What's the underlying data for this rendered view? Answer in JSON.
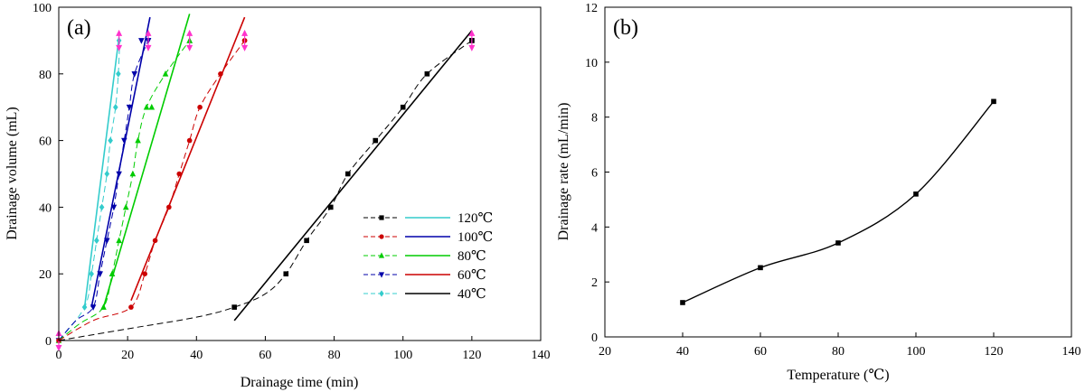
{
  "chart_data": [
    {
      "type": "line",
      "panel_label": "(a)",
      "xlabel": "Drainage time (min)",
      "ylabel": "Drainage volume (mL)",
      "xlim": [
        0,
        140
      ],
      "ylim": [
        0,
        100
      ],
      "xticks": [
        "0",
        "20",
        "40",
        "60",
        "80",
        "100",
        "120",
        "140"
      ],
      "yticks": [
        "0",
        "20",
        "40",
        "60",
        "80",
        "100"
      ],
      "legend_position": "lower-right",
      "series": [
        {
          "name": "120℃",
          "color": "#33cccc",
          "marker": "diamond",
          "x": [
            0,
            7.5,
            9.5,
            11,
            12.5,
            14,
            15,
            16.5,
            17.3
          ],
          "y": [
            0,
            10,
            20,
            30,
            40,
            50,
            60,
            70,
            80
          ],
          "dashed_curve": [
            [
              0,
              0
            ],
            [
              7.5,
              10
            ],
            [
              9.5,
              20
            ],
            [
              11,
              30
            ],
            [
              12.5,
              40
            ],
            [
              14,
              50
            ],
            [
              15,
              60
            ],
            [
              16.5,
              70
            ],
            [
              17.3,
              80
            ],
            [
              17.7,
              90
            ]
          ],
          "fit_line": [
            [
              7.5,
              10
            ],
            [
              17.5,
              91
            ]
          ],
          "end_value": [
            17.5,
            90
          ]
        },
        {
          "name": "100℃",
          "color": "#0000aa",
          "marker": "triangle-down",
          "x": [
            0,
            10,
            12,
            14,
            16,
            17.5,
            19,
            20.5,
            22,
            24,
            26
          ],
          "y": [
            0,
            10,
            20,
            30,
            40,
            50,
            60,
            70,
            80,
            90,
            90
          ],
          "dashed_curve": [
            [
              0,
              0
            ],
            [
              5,
              6
            ],
            [
              10,
              10
            ],
            [
              12,
              20
            ],
            [
              14,
              30
            ],
            [
              16,
              40
            ],
            [
              17.5,
              50
            ],
            [
              19,
              60
            ],
            [
              20.5,
              70
            ],
            [
              22,
              80
            ],
            [
              26,
              90
            ]
          ],
          "fit_line": [
            [
              9.5,
              10
            ],
            [
              26.5,
              97
            ]
          ],
          "end_value": [
            26,
            90
          ]
        },
        {
          "name": "80℃",
          "color": "#00cc00",
          "marker": "triangle-up",
          "x": [
            0,
            13,
            15.5,
            17.5,
            19.5,
            21.5,
            23,
            25.5,
            27,
            31,
            38
          ],
          "y": [
            0,
            10,
            20,
            30,
            40,
            50,
            60,
            70,
            70,
            80,
            90
          ],
          "dashed_curve": [
            [
              0,
              0
            ],
            [
              6,
              5
            ],
            [
              13,
              10
            ],
            [
              15.5,
              20
            ],
            [
              17.5,
              30
            ],
            [
              19.5,
              40
            ],
            [
              21.5,
              50
            ],
            [
              23,
              60
            ],
            [
              25.5,
              70
            ],
            [
              31,
              80
            ],
            [
              38,
              90
            ]
          ],
          "fit_line": [
            [
              13,
              10
            ],
            [
              38,
              98
            ]
          ],
          "end_value": [
            38,
            90
          ]
        },
        {
          "name": "60℃",
          "color": "#cc0000",
          "marker": "circle",
          "x": [
            0,
            21,
            25,
            28,
            32,
            35,
            38,
            41,
            47,
            54
          ],
          "y": [
            0,
            10,
            20,
            30,
            40,
            50,
            60,
            70,
            80,
            90
          ],
          "dashed_curve": [
            [
              0,
              0
            ],
            [
              10,
              6
            ],
            [
              21,
              10
            ],
            [
              25,
              20
            ],
            [
              28,
              30
            ],
            [
              32,
              40
            ],
            [
              35,
              50
            ],
            [
              38,
              60
            ],
            [
              41,
              70
            ],
            [
              47,
              80
            ],
            [
              54,
              90
            ]
          ],
          "fit_line": [
            [
              21,
              12
            ],
            [
              54,
              97
            ]
          ],
          "end_value": [
            54,
            90
          ]
        },
        {
          "name": "40℃",
          "color": "#000000",
          "marker": "square",
          "x": [
            51,
            66,
            72,
            79,
            84,
            92,
            100,
            107,
            120
          ],
          "y": [
            10,
            20,
            30,
            40,
            50,
            60,
            70,
            80,
            90
          ],
          "dashed_curve": [
            [
              0,
              0
            ],
            [
              20,
              3.5
            ],
            [
              40,
              7
            ],
            [
              51,
              10
            ],
            [
              60,
              14
            ],
            [
              66,
              20
            ],
            [
              72,
              30
            ],
            [
              79,
              40
            ],
            [
              84,
              50
            ],
            [
              92,
              60
            ],
            [
              100,
              70
            ],
            [
              107,
              80
            ],
            [
              120,
              90
            ]
          ],
          "fit_line": [
            [
              51,
              6
            ],
            [
              120,
              93
            ]
          ],
          "end_value": [
            120,
            90
          ]
        }
      ],
      "arrows_color": "#ff33cc",
      "arrow_x": [
        0,
        17.5,
        26,
        38,
        54,
        120
      ],
      "arrow_y": [
        0,
        90,
        90,
        90,
        90,
        90
      ]
    },
    {
      "type": "line",
      "panel_label": "(b)",
      "xlabel": "Temperature (℃)",
      "ylabel": "Drainage rate (mL/min)",
      "xlim": [
        20,
        140
      ],
      "ylim": [
        0,
        12
      ],
      "xticks": [
        "20",
        "40",
        "60",
        "80",
        "100",
        "120",
        "140"
      ],
      "yticks": [
        "0",
        "2",
        "4",
        "6",
        "8",
        "10",
        "12"
      ],
      "series": [
        {
          "color": "#000000",
          "marker": "square",
          "x": [
            40,
            60,
            80,
            100,
            120
          ],
          "y": [
            1.25,
            2.52,
            3.42,
            5.2,
            8.57
          ]
        }
      ]
    }
  ]
}
